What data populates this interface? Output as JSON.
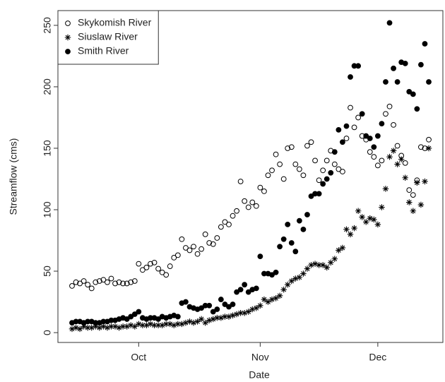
{
  "chart_data": {
    "type": "scatter",
    "x_label": "Date",
    "y_label": "Streamflow (cms)",
    "x": [
      0,
      1,
      2,
      3,
      4,
      5,
      6,
      7,
      8,
      9,
      10,
      11,
      12,
      13,
      14,
      15,
      16,
      17,
      18,
      19,
      20,
      21,
      22,
      23,
      24,
      25,
      26,
      27,
      28,
      29,
      30,
      31,
      32,
      33,
      34,
      35,
      36,
      37,
      38,
      39,
      40,
      41,
      42,
      43,
      44,
      45,
      46,
      47,
      48,
      49,
      50,
      51,
      52,
      53,
      54,
      55,
      56,
      57,
      58,
      59,
      60,
      61,
      62,
      63,
      64,
      65,
      66,
      67,
      68,
      69,
      70,
      71,
      72,
      73,
      74,
      75,
      76,
      77,
      78,
      79,
      80,
      81,
      82,
      83,
      84,
      85,
      86,
      87,
      88,
      89,
      90,
      91
    ],
    "xlim": [
      -3.6,
      94.6
    ],
    "xticks": [
      {
        "value": 17,
        "label": "Oct"
      },
      {
        "value": 48,
        "label": "Nov"
      },
      {
        "value": 78,
        "label": "Dec"
      }
    ],
    "ylim": [
      -8,
      262
    ],
    "yticks": [
      0,
      50,
      100,
      150,
      200,
      250
    ],
    "legend": "top-left",
    "series": [
      {
        "name": "Skykomish River",
        "color": "#000000",
        "marker": "circle-open",
        "values": [
          38,
          41,
          40,
          42,
          39,
          36,
          41,
          42,
          43,
          41,
          44,
          40,
          41,
          40,
          40,
          41,
          42,
          56,
          51,
          53,
          56,
          57,
          52,
          49,
          47,
          54,
          61,
          63,
          76,
          69,
          67,
          70,
          64,
          68,
          80,
          73,
          72,
          77,
          86,
          90,
          88,
          95,
          99,
          123,
          107,
          102,
          106,
          103,
          118,
          115,
          128,
          132,
          145,
          137,
          125,
          150,
          151,
          137,
          133,
          128,
          152,
          155,
          140,
          124,
          132,
          140,
          148,
          137,
          133,
          131,
          158,
          183,
          167,
          175,
          160,
          157,
          147,
          143,
          136,
          140,
          178,
          184,
          169,
          152,
          144,
          138,
          116,
          112,
          124,
          151,
          150,
          157
        ]
      },
      {
        "name": "Siuslaw River",
        "color": "#000000",
        "marker": "asterisk",
        "values": [
          3,
          4,
          3,
          5,
          4,
          4,
          5,
          4,
          5,
          4,
          5,
          5,
          4,
          5,
          5,
          6,
          5,
          7,
          6,
          6,
          7,
          6,
          6,
          6,
          7,
          7,
          6,
          7,
          7,
          8,
          9,
          8,
          9,
          11,
          8,
          10,
          11,
          12,
          12,
          13,
          13,
          14,
          15,
          16,
          16,
          17,
          19,
          20,
          22,
          27,
          25,
          27,
          28,
          30,
          35,
          39,
          42,
          44,
          45,
          48,
          52,
          55,
          56,
          55,
          55,
          53,
          57,
          60,
          67,
          69,
          84,
          80,
          85,
          99,
          94,
          90,
          93,
          92,
          88,
          102,
          117,
          143,
          148,
          137,
          141,
          126,
          106,
          99,
          122,
          104,
          123,
          150
        ]
      },
      {
        "name": "Smith River",
        "color": "#000000",
        "marker": "circle-filled",
        "values": [
          8,
          9,
          9,
          8,
          9,
          9,
          8,
          8,
          9,
          9,
          10,
          10,
          11,
          12,
          11,
          13,
          15,
          17,
          12,
          11,
          12,
          12,
          11,
          13,
          12,
          13,
          14,
          13,
          24,
          25,
          21,
          20,
          19,
          20,
          22,
          22,
          17,
          19,
          27,
          23,
          21,
          23,
          33,
          35,
          39,
          33,
          35,
          36,
          62,
          48,
          48,
          47,
          49,
          70,
          76,
          88,
          73,
          66,
          91,
          84,
          96,
          111,
          113,
          113,
          121,
          125,
          130,
          147,
          165,
          155,
          168,
          208,
          217,
          217,
          178,
          160,
          158,
          151,
          160,
          170,
          204,
          252,
          215,
          204,
          220,
          219,
          196,
          194,
          182,
          218,
          235,
          204
        ]
      }
    ]
  }
}
